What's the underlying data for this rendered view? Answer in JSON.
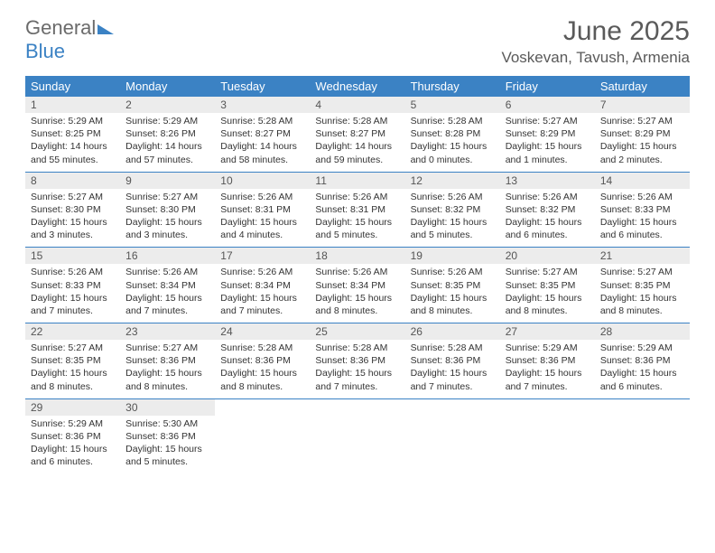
{
  "logo": {
    "text_gray": "General",
    "text_blue": "Blue"
  },
  "title": "June 2025",
  "location": "Voskevan, Tavush, Armenia",
  "header_bg": "#3b82c4",
  "stripe_bg": "#ececec",
  "rule_color": "#3b82c4",
  "day_names": [
    "Sunday",
    "Monday",
    "Tuesday",
    "Wednesday",
    "Thursday",
    "Friday",
    "Saturday"
  ],
  "weeks": [
    [
      {
        "n": "1",
        "sunrise": "5:29 AM",
        "sunset": "8:25 PM",
        "day_h": "14",
        "day_m": "55"
      },
      {
        "n": "2",
        "sunrise": "5:29 AM",
        "sunset": "8:26 PM",
        "day_h": "14",
        "day_m": "57"
      },
      {
        "n": "3",
        "sunrise": "5:28 AM",
        "sunset": "8:27 PM",
        "day_h": "14",
        "day_m": "58"
      },
      {
        "n": "4",
        "sunrise": "5:28 AM",
        "sunset": "8:27 PM",
        "day_h": "14",
        "day_m": "59"
      },
      {
        "n": "5",
        "sunrise": "5:28 AM",
        "sunset": "8:28 PM",
        "day_h": "15",
        "day_m": "0"
      },
      {
        "n": "6",
        "sunrise": "5:27 AM",
        "sunset": "8:29 PM",
        "day_h": "15",
        "day_m": "1"
      },
      {
        "n": "7",
        "sunrise": "5:27 AM",
        "sunset": "8:29 PM",
        "day_h": "15",
        "day_m": "2"
      }
    ],
    [
      {
        "n": "8",
        "sunrise": "5:27 AM",
        "sunset": "8:30 PM",
        "day_h": "15",
        "day_m": "3"
      },
      {
        "n": "9",
        "sunrise": "5:27 AM",
        "sunset": "8:30 PM",
        "day_h": "15",
        "day_m": "3"
      },
      {
        "n": "10",
        "sunrise": "5:26 AM",
        "sunset": "8:31 PM",
        "day_h": "15",
        "day_m": "4"
      },
      {
        "n": "11",
        "sunrise": "5:26 AM",
        "sunset": "8:31 PM",
        "day_h": "15",
        "day_m": "5"
      },
      {
        "n": "12",
        "sunrise": "5:26 AM",
        "sunset": "8:32 PM",
        "day_h": "15",
        "day_m": "5"
      },
      {
        "n": "13",
        "sunrise": "5:26 AM",
        "sunset": "8:32 PM",
        "day_h": "15",
        "day_m": "6"
      },
      {
        "n": "14",
        "sunrise": "5:26 AM",
        "sunset": "8:33 PM",
        "day_h": "15",
        "day_m": "6"
      }
    ],
    [
      {
        "n": "15",
        "sunrise": "5:26 AM",
        "sunset": "8:33 PM",
        "day_h": "15",
        "day_m": "7"
      },
      {
        "n": "16",
        "sunrise": "5:26 AM",
        "sunset": "8:34 PM",
        "day_h": "15",
        "day_m": "7"
      },
      {
        "n": "17",
        "sunrise": "5:26 AM",
        "sunset": "8:34 PM",
        "day_h": "15",
        "day_m": "7"
      },
      {
        "n": "18",
        "sunrise": "5:26 AM",
        "sunset": "8:34 PM",
        "day_h": "15",
        "day_m": "8"
      },
      {
        "n": "19",
        "sunrise": "5:26 AM",
        "sunset": "8:35 PM",
        "day_h": "15",
        "day_m": "8"
      },
      {
        "n": "20",
        "sunrise": "5:27 AM",
        "sunset": "8:35 PM",
        "day_h": "15",
        "day_m": "8"
      },
      {
        "n": "21",
        "sunrise": "5:27 AM",
        "sunset": "8:35 PM",
        "day_h": "15",
        "day_m": "8"
      }
    ],
    [
      {
        "n": "22",
        "sunrise": "5:27 AM",
        "sunset": "8:35 PM",
        "day_h": "15",
        "day_m": "8"
      },
      {
        "n": "23",
        "sunrise": "5:27 AM",
        "sunset": "8:36 PM",
        "day_h": "15",
        "day_m": "8"
      },
      {
        "n": "24",
        "sunrise": "5:28 AM",
        "sunset": "8:36 PM",
        "day_h": "15",
        "day_m": "8"
      },
      {
        "n": "25",
        "sunrise": "5:28 AM",
        "sunset": "8:36 PM",
        "day_h": "15",
        "day_m": "7"
      },
      {
        "n": "26",
        "sunrise": "5:28 AM",
        "sunset": "8:36 PM",
        "day_h": "15",
        "day_m": "7"
      },
      {
        "n": "27",
        "sunrise": "5:29 AM",
        "sunset": "8:36 PM",
        "day_h": "15",
        "day_m": "7"
      },
      {
        "n": "28",
        "sunrise": "5:29 AM",
        "sunset": "8:36 PM",
        "day_h": "15",
        "day_m": "6"
      }
    ],
    [
      {
        "n": "29",
        "sunrise": "5:29 AM",
        "sunset": "8:36 PM",
        "day_h": "15",
        "day_m": "6"
      },
      {
        "n": "30",
        "sunrise": "5:30 AM",
        "sunset": "8:36 PM",
        "day_h": "15",
        "day_m": "5"
      },
      null,
      null,
      null,
      null,
      null
    ]
  ],
  "labels": {
    "sunrise_prefix": "Sunrise: ",
    "sunset_prefix": "Sunset: ",
    "daylight_prefix": "Daylight: ",
    "hours_word": " hours",
    "and_word": "and ",
    "minutes_word": " minutes."
  }
}
